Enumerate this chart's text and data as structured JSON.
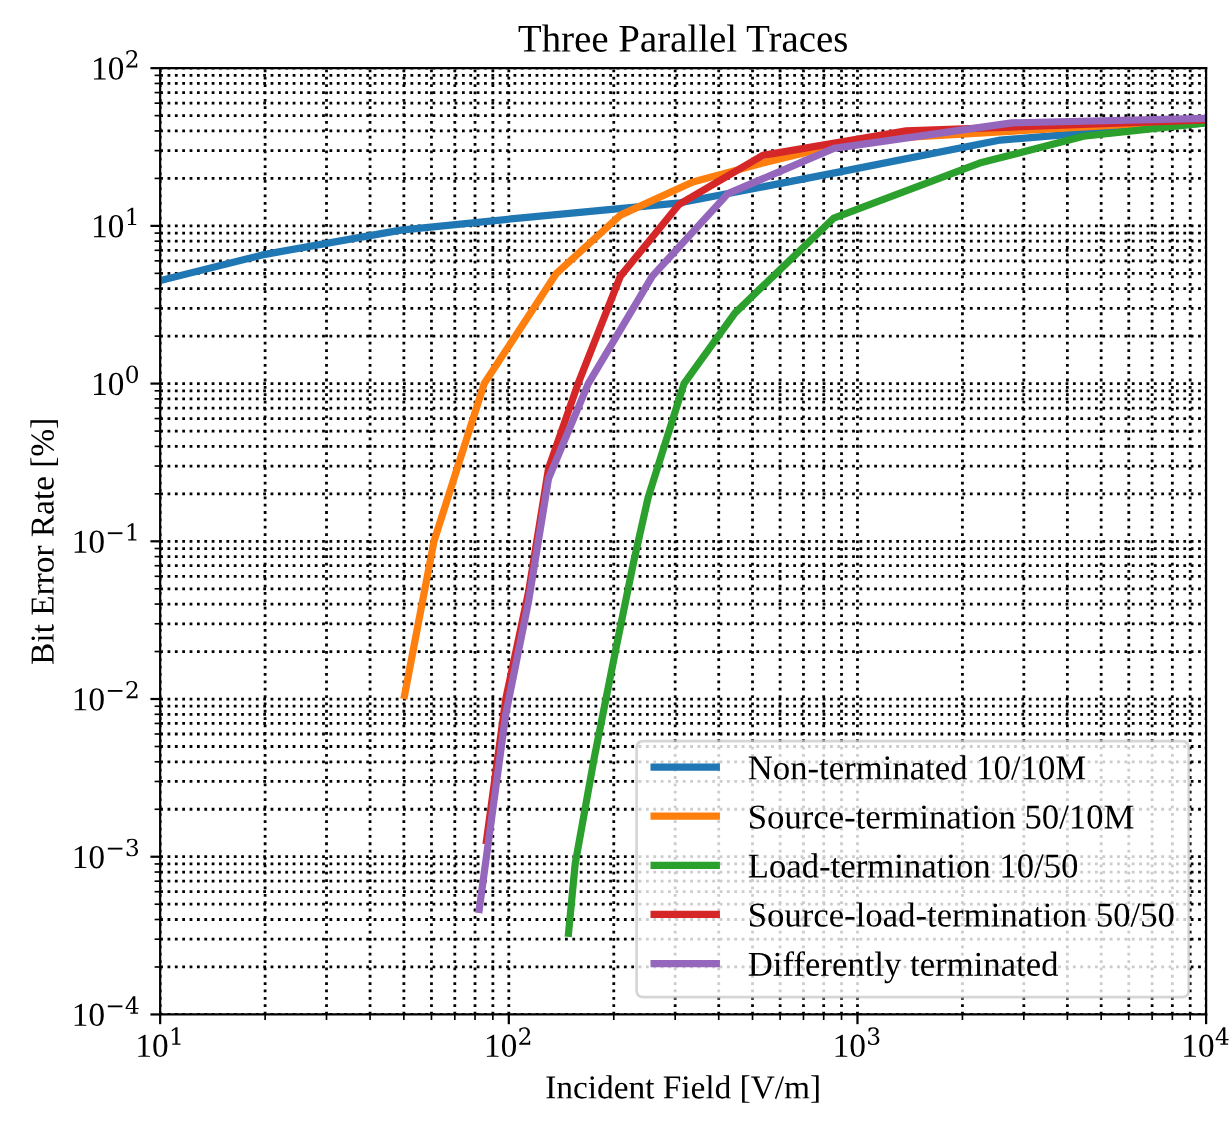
{
  "chart_data": {
    "type": "line",
    "title": "Three Parallel Traces",
    "xlabel": "Incident Field [V/m]",
    "ylabel": "Bit Error Rate [%]",
    "log": "xy",
    "grid": true,
    "legend": "bottom right",
    "line_style": "solid",
    "xlim": [
      10,
      10000
    ],
    "ylim": [
      0.0001,
      100
    ],
    "xticks": [
      {
        "value": 10,
        "label": "10$^{1}$"
      },
      {
        "value": 100,
        "label": "10$^{2}$"
      },
      {
        "value": 1000,
        "label": "10$^{3}$"
      },
      {
        "value": 10000,
        "label": "10$^{4}$"
      }
    ],
    "yticks": [
      {
        "value": 0.0001,
        "label": "10$^{−4}$"
      },
      {
        "value": 0.001,
        "label": "10$^{−3}$"
      },
      {
        "value": 0.01,
        "label": "10$^{−2}$"
      },
      {
        "value": 0.1,
        "label": "10$^{−1}$"
      },
      {
        "value": 1,
        "label": "10$^{0}$"
      },
      {
        "value": 10,
        "label": "10$^{1}$"
      },
      {
        "value": 100,
        "label": "10$^{2}$"
      }
    ],
    "series": [
      {
        "name": "Non-terminated 10/10M",
        "color": "#1f77b4",
        "x": [
          10,
          20,
          49,
          107,
          310,
          890,
          2570,
          10000
        ],
        "values": [
          4.5,
          6.6,
          9.4,
          11.2,
          14,
          22,
          35,
          45
        ]
      },
      {
        "name": "Source-termination 50/10M",
        "color": "#ff7f0e",
        "x": [
          50,
          61,
          85,
          137,
          209,
          337,
          535,
          1000,
          10000
        ],
        "values": [
          0.01,
          0.1,
          1,
          5,
          11.7,
          19,
          25,
          35,
          47
        ]
      },
      {
        "name": "Load-termination 10/50",
        "color": "#2ca02c",
        "x": [
          148,
          155,
          176,
          203,
          228,
          251,
          318,
          445,
          855,
          2240,
          4450,
          10000
        ],
        "values": [
          0.00031,
          0.0009,
          0.0043,
          0.021,
          0.074,
          0.19,
          1,
          2.8,
          11.2,
          25,
          37,
          45
        ]
      },
      {
        "name": "Source-load-termination 50/50",
        "color": "#d62728",
        "x": [
          86,
          98,
          114,
          130,
          158,
          209,
          308,
          535,
          1380,
          10000
        ],
        "values": [
          0.0012,
          0.01,
          0.048,
          0.29,
          1,
          4.8,
          13.7,
          28,
          40,
          47
        ]
      },
      {
        "name": "Differently terminated",
        "color": "#9467bd",
        "x": [
          82,
          98,
          114,
          130,
          169,
          258,
          425,
          855,
          2770,
          10000
        ],
        "values": [
          0.00044,
          0.008,
          0.042,
          0.25,
          1,
          4.8,
          16,
          31,
          45,
          48
        ]
      }
    ]
  }
}
